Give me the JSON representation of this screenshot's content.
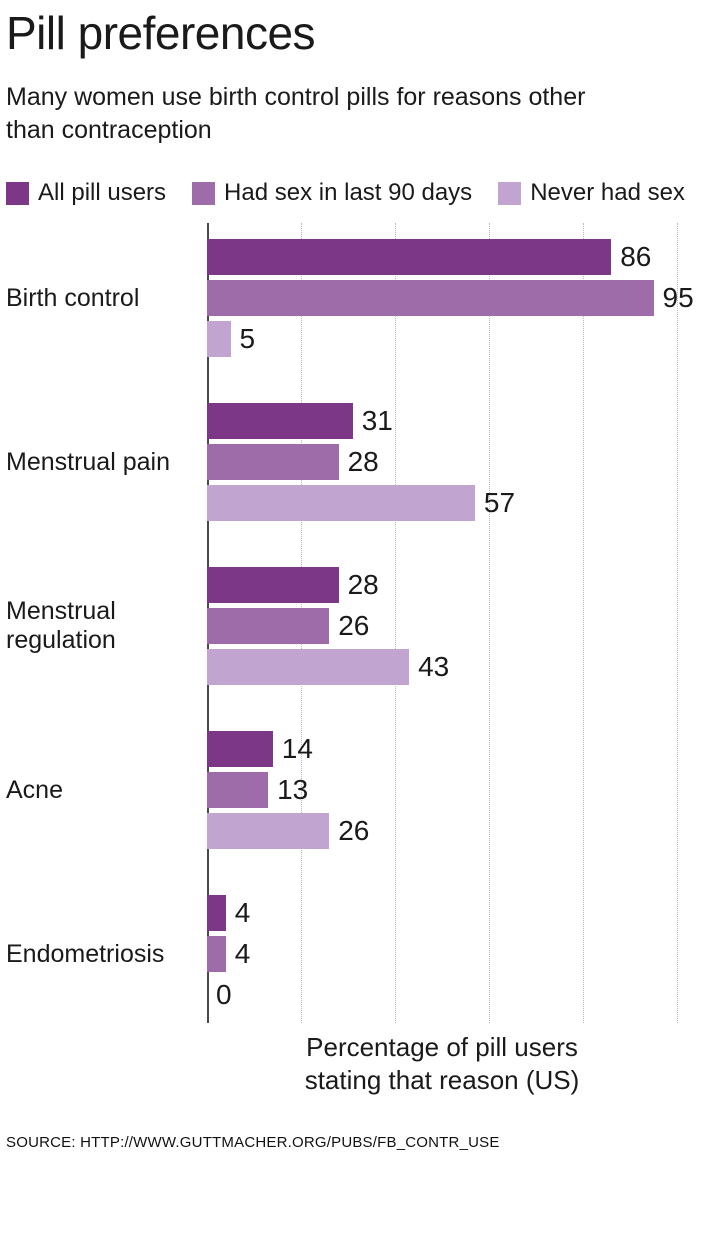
{
  "header": {
    "title": "Pill preferences",
    "subtitle_line1": "Many women use birth control pills for reasons other",
    "subtitle_line2": "than contraception"
  },
  "axis_label": {
    "line1": "Percentage of pill users",
    "line2": "stating that reason (US)"
  },
  "source": "SOURCE: HTTP://WWW.GUTTMACHER.ORG/PUBS/FB_CONTR_USE",
  "colors": {
    "series_dark": "#7d3787",
    "series_medium": "#9e6ca8",
    "series_light": "#c2a4d0",
    "gridline": "#b9b9b9",
    "axis": "#4a4a4a",
    "text": "#1a1a1a"
  },
  "chart_data": {
    "type": "bar",
    "orientation": "horizontal",
    "title": "Pill preferences",
    "subtitle": "Many women use birth control pills for reasons other than contraception",
    "categories": [
      "Birth control",
      "Menstrual pain",
      "Menstrual regulation",
      "Acne",
      "Endometriosis"
    ],
    "series": [
      {
        "name": "All pill users",
        "color": "#7d3787",
        "values": [
          86,
          31,
          28,
          14,
          4
        ]
      },
      {
        "name": "Had sex in last 90 days",
        "color": "#9e6ca8",
        "values": [
          95,
          28,
          26,
          13,
          4
        ]
      },
      {
        "name": "Never had sex",
        "color": "#c2a4d0",
        "values": [
          5,
          57,
          43,
          26,
          0
        ]
      }
    ],
    "xlabel": "Percentage of pill users stating that reason (US)",
    "xlim": [
      0,
      100
    ],
    "gridlines": [
      20,
      40,
      60,
      80,
      100
    ],
    "grid_style": "dotted",
    "value_labels": true,
    "legend_position": "top",
    "source": "SOURCE: HTTP://WWW.GUTTMACHER.ORG/PUBS/FB_CONTR_USE"
  }
}
